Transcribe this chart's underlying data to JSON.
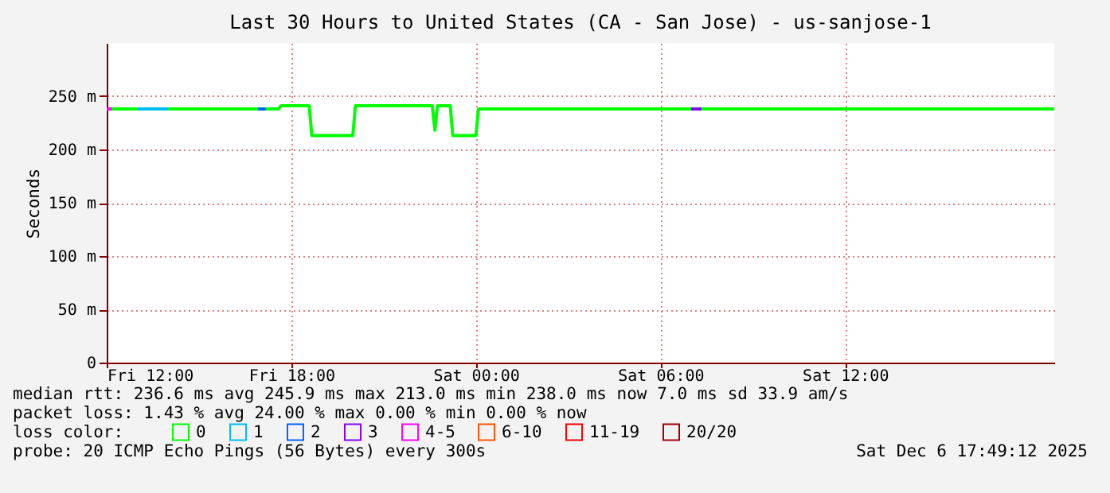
{
  "chart_data": {
    "type": "line",
    "title": "Last 30 Hours to United States (CA - San Jose) - us-sanjose-1",
    "ylabel": "Seconds",
    "legend_title": "loss color:",
    "xlim": [
      "2025-12-05T12:00",
      "2025-12-06T18:48"
    ],
    "xticks": [
      {
        "value": "2025-12-05T12:00",
        "label": "Fri 12:00"
      },
      {
        "value": "2025-12-05T18:00",
        "label": "Fri 18:00"
      },
      {
        "value": "2025-12-06T00:00",
        "label": "Sat 00:00"
      },
      {
        "value": "2025-12-06T06:00",
        "label": "Sat 06:00"
      },
      {
        "value": "2025-12-06T12:00",
        "label": "Sat 12:00"
      }
    ],
    "ylim": [
      0,
      300
    ],
    "yticks": [
      0,
      {
        "value": 50,
        "label": "50 m"
      },
      {
        "value": 100,
        "label": "100 m"
      },
      {
        "value": 150,
        "label": "150 m"
      },
      {
        "value": 200,
        "label": "200 m"
      },
      {
        "value": 250,
        "label": "250 m"
      }
    ],
    "grid": true,
    "legend": "bottom",
    "marker": "none",
    "line_style": "solid",
    "series": [
      {
        "name": "0",
        "color": "#00ff00",
        "x": [
          "2025-12-05T12:00",
          "2025-12-05T17:35",
          "2025-12-05T17:40",
          "2025-12-05T18:35",
          "2025-12-05T18:40",
          "2025-12-05T20:00",
          "2025-12-05T20:05",
          "2025-12-05T22:35",
          "2025-12-05T22:40",
          "2025-12-05T22:45",
          "2025-12-05T23:10",
          "2025-12-05T23:15",
          "2025-12-06T00:00",
          "2025-12-06T00:05",
          "2025-12-06T18:48"
        ],
        "values": [
          238,
          238,
          241,
          241,
          213,
          213,
          241,
          241,
          218,
          241,
          241,
          213,
          213,
          238,
          238
        ]
      },
      {
        "name": "1",
        "color": "#00bbff",
        "x": [
          "2025-12-05T13:00",
          "2025-12-05T14:00"
        ],
        "values": [
          238,
          238
        ]
      },
      {
        "name": "2",
        "color": "#0066ff",
        "x": [
          "2025-12-05T16:55",
          "2025-12-05T17:10"
        ],
        "values": [
          238,
          238
        ]
      },
      {
        "name": "3",
        "color": "#8800ff",
        "x": [
          "2025-12-06T07:00",
          "2025-12-06T07:20"
        ],
        "values": [
          238,
          238
        ]
      },
      {
        "name": "4-5",
        "color": "#ff00ff",
        "x": [
          "2025-12-05T12:00",
          "2025-12-05T12:10"
        ],
        "values": [
          238,
          238
        ]
      },
      {
        "name": "6-10",
        "color": "#ff5500"
      },
      {
        "name": "11-19",
        "color": "#ff0000"
      },
      {
        "name": "20/20",
        "color": "#a10000"
      }
    ],
    "annotations": [
      "median rtt:  236.6 ms avg  245.9 ms max  213.0 ms min  238.0 ms now  7.0 ms sd  33.9   am/s",
      "packet loss: 1.43 % avg  24.00 % max  0.00 % min  0.00 % now",
      "probe:       20 ICMP Echo Pings (56 Bytes) every 300s",
      "Sat Dec  6 17:49:12 2025"
    ]
  }
}
